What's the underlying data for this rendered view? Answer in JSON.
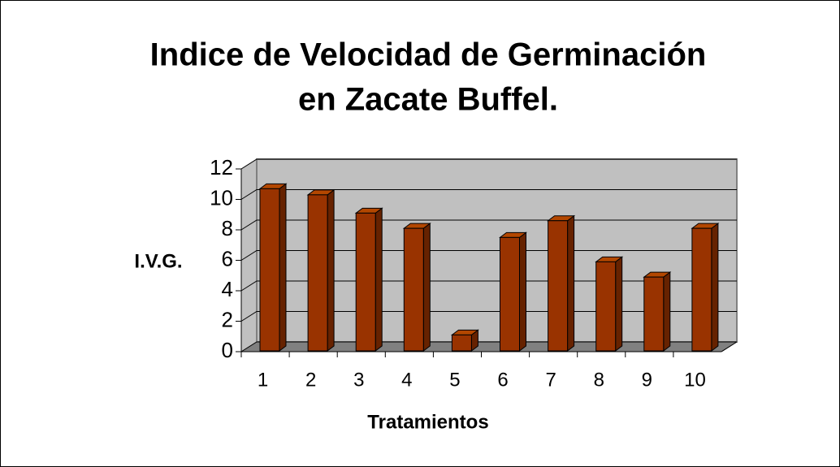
{
  "chart_data": {
    "type": "bar3d",
    "title": [
      "Indice de Velocidad de Germinación",
      "en Zacate Buffel."
    ],
    "x_label": "Tratamientos",
    "y_label": "I.V.G.",
    "categories": [
      "1",
      "2",
      "3",
      "4",
      "5",
      "6",
      "7",
      "8",
      "9",
      "10"
    ],
    "values": [
      10.7,
      10.3,
      9.1,
      8.1,
      1.1,
      7.5,
      8.6,
      5.9,
      4.9,
      8.1
    ],
    "color": "#993300",
    "ylim": [
      0,
      12
    ],
    "yticks": [
      0,
      2,
      4,
      6,
      8,
      10,
      12
    ],
    "grid": true
  }
}
